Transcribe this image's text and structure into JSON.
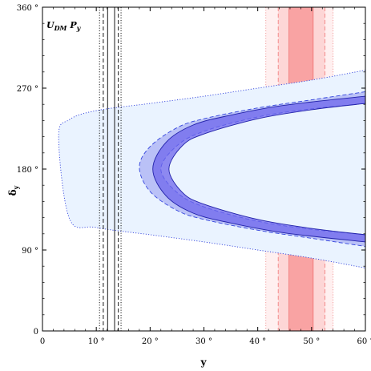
{
  "chart_data": {
    "type": "area",
    "title": "",
    "xlabel": "y",
    "ylabel": "δ",
    "ylabel_sub": "y",
    "xlim": [
      0,
      60
    ],
    "ylim": [
      0,
      360
    ],
    "x_ticks": [
      0,
      10,
      20,
      30,
      40,
      50,
      60
    ],
    "x_tick_labels": [
      "0",
      "10 °",
      "20 °",
      "30 °",
      "40 °",
      "50 °",
      "60 °"
    ],
    "y_ticks": [
      0,
      90,
      180,
      270,
      360
    ],
    "y_tick_labels": [
      "0",
      "90 °",
      "180 °",
      "270 °",
      "360 °"
    ],
    "grid": false,
    "annotation": {
      "main": "U",
      "main_sub": "DM",
      "second": "P",
      "second_sub": "y"
    },
    "regions": [
      {
        "level": "outer",
        "fill": "#eaf3ff",
        "stroke": "#3344dd",
        "dash": "dotted",
        "upper": [
          [
            3,
            216
          ],
          [
            5,
            235
          ],
          [
            10,
            245
          ],
          [
            20,
            253
          ],
          [
            30,
            261
          ],
          [
            40,
            270
          ],
          [
            50,
            279
          ],
          [
            60,
            290
          ]
        ],
        "lower": [
          [
            3,
            144
          ],
          [
            5,
            125
          ],
          [
            10,
            115
          ],
          [
            20,
            107
          ],
          [
            30,
            99
          ],
          [
            40,
            90
          ],
          [
            50,
            81
          ],
          [
            60,
            70
          ]
        ]
      },
      {
        "level": "middle",
        "fill": "#aab0f4",
        "stroke": "#3344dd",
        "dash": "dashed",
        "upper": [
          [
            18,
            182
          ],
          [
            20,
            205
          ],
          [
            25,
            226
          ],
          [
            30,
            236
          ],
          [
            40,
            248
          ],
          [
            50,
            257
          ],
          [
            60,
            266
          ]
        ],
        "lower": [
          [
            18,
            178
          ],
          [
            20,
            155
          ],
          [
            25,
            134
          ],
          [
            30,
            124
          ],
          [
            40,
            112
          ],
          [
            50,
            103
          ],
          [
            60,
            94
          ]
        ],
        "inner_upper": [
          [
            22,
            180
          ],
          [
            25,
            206
          ],
          [
            30,
            222
          ],
          [
            40,
            238
          ],
          [
            50,
            247
          ],
          [
            60,
            253
          ]
        ],
        "inner_lower": [
          [
            22,
            180
          ],
          [
            25,
            154
          ],
          [
            30,
            138
          ],
          [
            40,
            122
          ],
          [
            50,
            113
          ],
          [
            60,
            107
          ]
        ]
      },
      {
        "level": "inner",
        "fill": "#6d66ec",
        "stroke": "#2222aa",
        "dash": "solid",
        "upper": [
          [
            20.5,
            180
          ],
          [
            23,
            210
          ],
          [
            28,
            229
          ],
          [
            35,
            240
          ],
          [
            45,
            251
          ],
          [
            60,
            261
          ]
        ],
        "lower": [
          [
            20.5,
            180
          ],
          [
            23,
            150
          ],
          [
            28,
            131
          ],
          [
            35,
            120
          ],
          [
            45,
            109
          ],
          [
            60,
            99
          ]
        ],
        "inner_upper": [
          [
            23.5,
            180
          ],
          [
            26,
            206
          ],
          [
            30,
            219
          ],
          [
            40,
            236
          ],
          [
            50,
            246
          ],
          [
            60,
            253
          ]
        ],
        "inner_lower": [
          [
            23.5,
            180
          ],
          [
            26,
            154
          ],
          [
            30,
            141
          ],
          [
            40,
            124
          ],
          [
            50,
            114
          ],
          [
            60,
            107
          ]
        ]
      }
    ],
    "vertical_lines": [
      {
        "x": 10.6,
        "style": "dotted",
        "color": "#000000"
      },
      {
        "x": 11.3,
        "style": "dashed",
        "color": "#000000"
      },
      {
        "x": 12.1,
        "style": "solid",
        "color": "#000000"
      },
      {
        "x": 13.4,
        "style": "solid",
        "color": "#000000"
      },
      {
        "x": 14.1,
        "style": "dashed",
        "color": "#000000"
      },
      {
        "x": 14.6,
        "style": "dotted",
        "color": "#000000"
      }
    ],
    "vertical_bands": [
      {
        "x_range": [
          41.5,
          54.0
        ],
        "fill": "#fff0f0",
        "stroke": "#f08a8a",
        "dash": "dotted"
      },
      {
        "x_range": [
          43.8,
          52.5
        ],
        "fill": "#fdd6d6",
        "stroke": "#f07a7a",
        "dash": "dashed"
      },
      {
        "x_range": [
          45.8,
          50.3
        ],
        "fill": "#f9a3a3",
        "stroke": "#ef7070",
        "dash": "solid"
      }
    ]
  }
}
